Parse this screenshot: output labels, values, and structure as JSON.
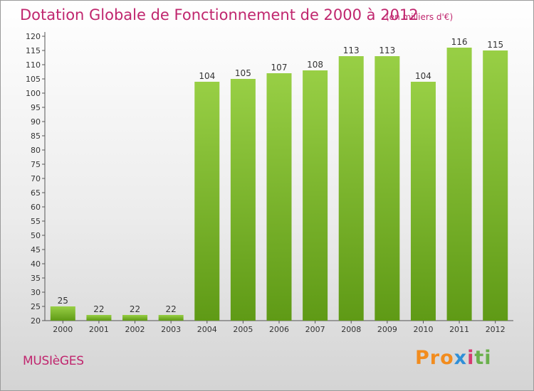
{
  "header": {
    "title": "Dotation Globale de Fonctionnement de 2000 à 2012",
    "subtitle": "(en milliers d'€)"
  },
  "footer": {
    "commune": "MUSIèGES",
    "brand_letters": [
      "Pro",
      "x",
      "i",
      "ti"
    ]
  },
  "colors": {
    "bar": "#7cbd2a",
    "bar_dark": "#5f9a16",
    "accent": "#c0266e"
  },
  "chart_data": {
    "type": "bar",
    "title": "Dotation Globale de Fonctionnement de 2000 à 2012",
    "subtitle": "(en milliers d'€)",
    "categories": [
      "2000",
      "2001",
      "2002",
      "2003",
      "2004",
      "2005",
      "2006",
      "2007",
      "2008",
      "2009",
      "2010",
      "2011",
      "2012"
    ],
    "values": [
      25,
      22,
      22,
      22,
      104,
      105,
      107,
      108,
      113,
      113,
      104,
      116,
      115
    ],
    "xlabel": "",
    "ylabel": "",
    "ylim": [
      20,
      120
    ],
    "yticks": [
      20,
      25,
      30,
      35,
      40,
      45,
      50,
      55,
      60,
      65,
      70,
      75,
      80,
      85,
      90,
      95,
      100,
      105,
      110,
      115,
      120
    ],
    "grid": false
  }
}
